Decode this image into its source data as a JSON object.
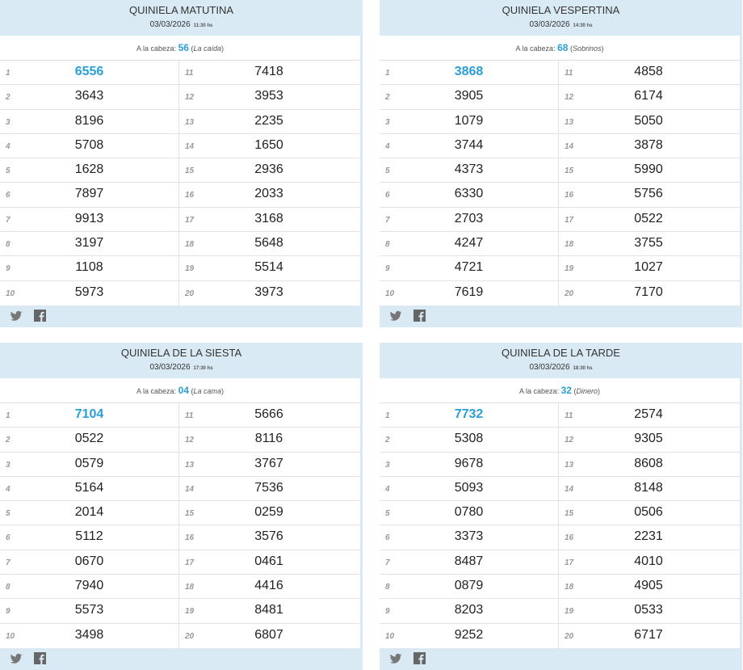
{
  "cabeza_label": "A la cabeza:",
  "colors": {
    "accent": "#2a9fd6",
    "panel_bg": "#daeaf5"
  },
  "icons": [
    "twitter-icon",
    "facebook-icon"
  ],
  "panels": [
    {
      "title": "QUINIELA MATUTINA",
      "date": "03/03/2026",
      "time": "11:30 hs",
      "cabeza": "56",
      "meaning": "La caída",
      "numbers": [
        "6556",
        "3643",
        "8196",
        "5708",
        "1628",
        "7897",
        "9913",
        "3197",
        "1108",
        "5973",
        "7418",
        "3953",
        "2235",
        "1650",
        "2936",
        "2033",
        "3168",
        "5648",
        "5514",
        "3973"
      ]
    },
    {
      "title": "QUINIELA VESPERTINA",
      "date": "03/03/2026",
      "time": "14:30 hs",
      "cabeza": "68",
      "meaning": "Sobrinos",
      "numbers": [
        "3868",
        "3905",
        "1079",
        "3744",
        "4373",
        "6330",
        "2703",
        "4247",
        "4721",
        "7619",
        "4858",
        "6174",
        "5050",
        "3878",
        "5990",
        "5756",
        "0522",
        "3755",
        "1027",
        "7170"
      ]
    },
    {
      "title": "QUINIELA DE LA SIESTA",
      "date": "03/03/2026",
      "time": "17:30 hs",
      "cabeza": "04",
      "meaning": "La cama",
      "numbers": [
        "7104",
        "0522",
        "0579",
        "5164",
        "2014",
        "5112",
        "0670",
        "7940",
        "5573",
        "3498",
        "5666",
        "8116",
        "3767",
        "7536",
        "0259",
        "3576",
        "0461",
        "4416",
        "8481",
        "6807"
      ]
    },
    {
      "title": "QUINIELA DE LA TARDE",
      "date": "03/03/2026",
      "time": "18:30 hs",
      "cabeza": "32",
      "meaning": "Dinero",
      "numbers": [
        "7732",
        "5308",
        "9678",
        "5093",
        "0780",
        "3373",
        "8487",
        "0879",
        "8203",
        "9252",
        "2574",
        "9305",
        "8608",
        "8148",
        "0506",
        "2231",
        "4010",
        "4905",
        "0533",
        "6717"
      ]
    }
  ]
}
